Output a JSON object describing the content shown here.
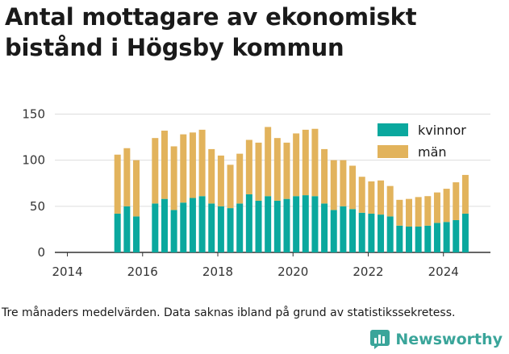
{
  "title": "Antal mottagare av ekonomiskt bistånd i Högsby kommun",
  "footnote": "Tre månaders medelvärden. Data saknas ibland på grund av statistikssekretess.",
  "brand": {
    "name": "Newsworthy",
    "logo_icon": "newsworthy-logo-icon"
  },
  "colors": {
    "kvinnor": "#0aa89e",
    "man": "#e2b35c",
    "axis": "#333333",
    "grid": "#dddddd"
  },
  "chart_data": {
    "type": "bar",
    "stacked": true,
    "title": "Antal mottagare av ekonomiskt bistånd i Högsby kommun",
    "xlabel": "",
    "ylabel": "",
    "xlim": [
      "2013-09",
      "2025-04"
    ],
    "ylim": [
      0,
      160
    ],
    "yticks": [
      0,
      50,
      100,
      150
    ],
    "xticks": [
      "2014",
      "2016",
      "2018",
      "2020",
      "2022",
      "2024"
    ],
    "grid": true,
    "legend_position": "top-right",
    "x": [
      "2015-05",
      "2015-08",
      "2015-11",
      "2016-05",
      "2016-08",
      "2016-11",
      "2017-02",
      "2017-05",
      "2017-08",
      "2017-11",
      "2018-02",
      "2018-05",
      "2018-08",
      "2018-11",
      "2019-02",
      "2019-05",
      "2019-08",
      "2019-11",
      "2020-02",
      "2020-05",
      "2020-08",
      "2020-11",
      "2021-02",
      "2021-05",
      "2021-08",
      "2021-11",
      "2022-02",
      "2022-05",
      "2022-08",
      "2022-11",
      "2023-02",
      "2023-05",
      "2023-08",
      "2023-11",
      "2024-02",
      "2024-05",
      "2024-08"
    ],
    "series": [
      {
        "name": "kvinnor",
        "color": "#0aa89e",
        "values": [
          42,
          50,
          39,
          53,
          58,
          46,
          54,
          59,
          61,
          53,
          50,
          48,
          53,
          63,
          56,
          61,
          56,
          58,
          61,
          62,
          61,
          53,
          46,
          50,
          47,
          43,
          42,
          41,
          39,
          29,
          28,
          28,
          29,
          32,
          33,
          35,
          42
        ]
      },
      {
        "name": "män",
        "color": "#e2b35c",
        "values": [
          64,
          63,
          61,
          71,
          74,
          69,
          74,
          71,
          72,
          59,
          55,
          47,
          54,
          59,
          63,
          75,
          68,
          61,
          68,
          71,
          73,
          59,
          54,
          50,
          47,
          39,
          35,
          37,
          33,
          28,
          30,
          32,
          32,
          33,
          36,
          41,
          42
        ]
      }
    ]
  }
}
